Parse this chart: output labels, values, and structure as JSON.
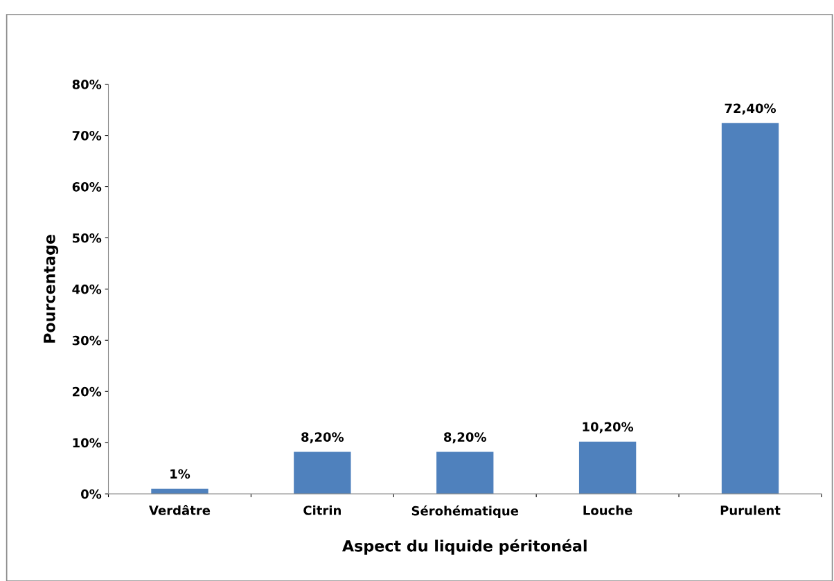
{
  "chart_data": {
    "type": "bar",
    "xlabel": "Aspect du liquide péritonéal",
    "ylabel": "Pourcentage",
    "categories": [
      "Verdâtre",
      "Citrin",
      "Sérohématique",
      "Louche",
      "Purulent"
    ],
    "values": [
      1,
      8.2,
      8.2,
      10.2,
      72.4
    ],
    "value_labels": [
      "1%",
      "8,20%",
      "8,20%",
      "10,20%",
      "72,40%"
    ],
    "color": "#4f81bd",
    "ylim": [
      0,
      80
    ],
    "yticks": [
      {
        "value": 0,
        "label": "0%"
      },
      {
        "value": 10,
        "label": "10%"
      },
      {
        "value": 20,
        "label": "20%"
      },
      {
        "value": 30,
        "label": "30%"
      },
      {
        "value": 40,
        "label": "40%"
      },
      {
        "value": 50,
        "label": "50%"
      },
      {
        "value": 60,
        "label": "60%"
      },
      {
        "value": 70,
        "label": "70%"
      },
      {
        "value": 80,
        "label": "80%"
      }
    ],
    "grid": false,
    "legend": false
  }
}
